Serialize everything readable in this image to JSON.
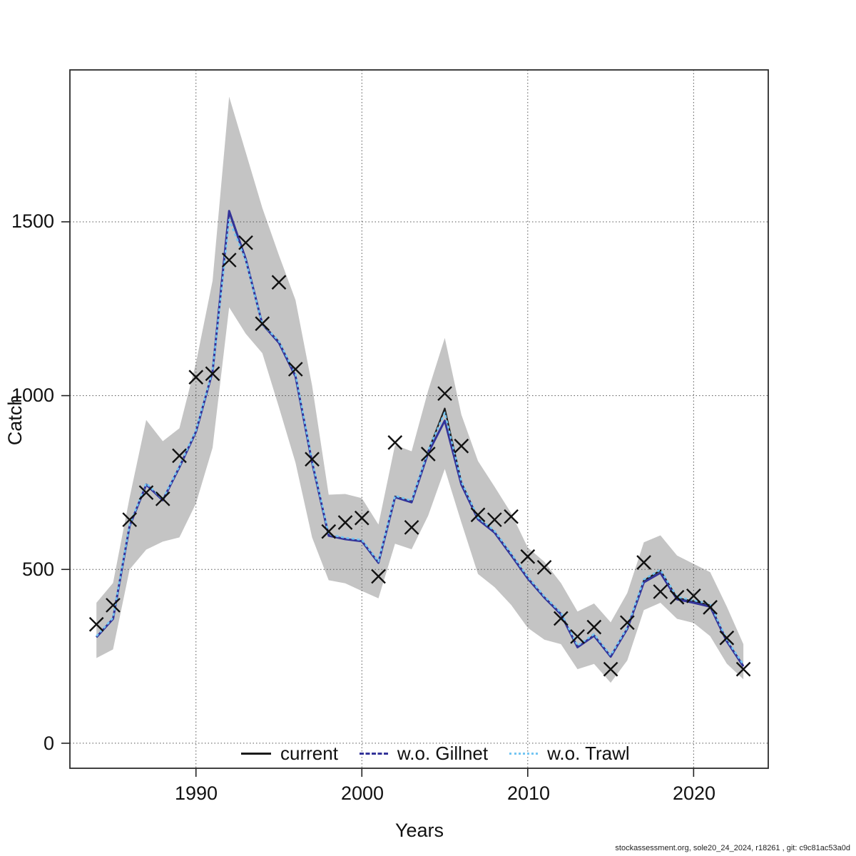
{
  "chart_data": {
    "type": "line",
    "title": "",
    "xlabel": "Years",
    "ylabel": "Catch",
    "xlim": [
      1982.4,
      2024.5
    ],
    "ylim": [
      -72,
      1937
    ],
    "grid": "dotted",
    "x_ticks": [
      1990,
      2000,
      2010,
      2020
    ],
    "y_ticks": [
      0,
      500,
      1000,
      1500
    ],
    "x_tick_labels": [
      "1990",
      "2000",
      "2010",
      "2020"
    ],
    "y_tick_labels": [
      "0",
      "500",
      "1000",
      "1500"
    ],
    "years": [
      1984,
      1985,
      1986,
      1987,
      1988,
      1989,
      1990,
      1991,
      1992,
      1993,
      1994,
      1995,
      1996,
      1997,
      1998,
      1999,
      2000,
      2001,
      2002,
      2003,
      2004,
      2005,
      2006,
      2007,
      2008,
      2009,
      2010,
      2011,
      2012,
      2013,
      2014,
      2015,
      2016,
      2017,
      2018,
      2019,
      2020,
      2021,
      2022,
      2023
    ],
    "series": [
      {
        "name": "current",
        "color": "#1a1a1a",
        "style": "solid",
        "width": 2.2,
        "values": [
          305,
          358,
          625,
          745,
          700,
          795,
          897,
          1070,
          1528,
          1390,
          1207,
          1155,
          1058,
          810,
          598,
          588,
          582,
          520,
          710,
          695,
          840,
          963,
          750,
          646,
          608,
          543,
          476,
          420,
          373,
          277,
          311,
          250,
          330,
          468,
          497,
          418,
          408,
          397,
          295,
          223
        ]
      },
      {
        "name": "w.o. Gillnet",
        "color": "#333399",
        "style": "solid",
        "width": 3,
        "values": [
          305,
          358,
          625,
          744,
          699,
          794,
          896,
          1069,
          1531,
          1393,
          1206,
          1152,
          1055,
          808,
          597,
          587,
          581,
          519,
          708,
          693,
          836,
          928,
          744,
          644,
          606,
          541,
          474,
          419,
          371,
          276,
          309,
          249,
          329,
          463,
          490,
          414,
          404,
          393,
          293,
          221
        ]
      },
      {
        "name": "w.o. Trawl",
        "color": "#74C5F2",
        "style": "dashed",
        "width": 2.6,
        "values": [
          308,
          361,
          628,
          748,
          702,
          797,
          900,
          1072,
          1506,
          1389,
          1206,
          1157,
          1061,
          812,
          601,
          591,
          585,
          523,
          712,
          698,
          843,
          951,
          753,
          649,
          611,
          546,
          479,
          423,
          376,
          281,
          314,
          253,
          333,
          471,
          499,
          421,
          411,
          400,
          298,
          226
        ]
      }
    ],
    "observed": {
      "marker": "x-cross",
      "color": "#111111",
      "values": [
        342,
        397,
        643,
        721,
        703,
        827,
        1053,
        1063,
        1390,
        1440,
        1207,
        1326,
        1076,
        817,
        609,
        635,
        648,
        480,
        865,
        621,
        832,
        1006,
        855,
        657,
        643,
        652,
        537,
        506,
        359,
        307,
        334,
        213,
        347,
        520,
        436,
        420,
        424,
        391,
        303,
        213
      ]
    },
    "confidence_band": {
      "color": "#c4c4c4",
      "lower": [
        245,
        270,
        500,
        557,
        580,
        592,
        690,
        850,
        1254,
        1178,
        1122,
        967,
        807,
        592,
        469,
        460,
        438,
        417,
        574,
        558,
        655,
        789,
        635,
        487,
        449,
        398,
        332,
        298,
        285,
        213,
        228,
        174,
        238,
        383,
        404,
        358,
        346,
        308,
        229,
        184
      ],
      "upper": [
        404,
        461,
        707,
        930,
        869,
        906,
        1094,
        1330,
        1860,
        1700,
        1540,
        1404,
        1275,
        1029,
        715,
        717,
        705,
        629,
        858,
        840,
        1015,
        1166,
        945,
        812,
        738,
        662,
        563,
        522,
        461,
        379,
        402,
        348,
        432,
        578,
        598,
        540,
        516,
        492,
        393,
        285
      ]
    },
    "legend": {
      "position": "bottom-inside"
    }
  },
  "footer": {
    "credit": "stockassessment.org, sole20_24_2024, r18261 , git: c9c81ac53a0d"
  }
}
